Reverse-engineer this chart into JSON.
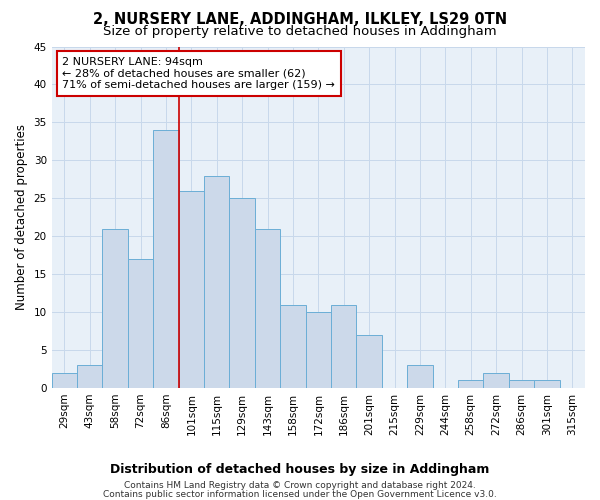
{
  "title": "2, NURSERY LANE, ADDINGHAM, ILKLEY, LS29 0TN",
  "subtitle": "Size of property relative to detached houses in Addingham",
  "xlabel": "Distribution of detached houses by size in Addingham",
  "ylabel": "Number of detached properties",
  "bar_labels": [
    "29sqm",
    "43sqm",
    "58sqm",
    "72sqm",
    "86sqm",
    "101sqm",
    "115sqm",
    "129sqm",
    "143sqm",
    "158sqm",
    "172sqm",
    "186sqm",
    "201sqm",
    "215sqm",
    "229sqm",
    "244sqm",
    "258sqm",
    "272sqm",
    "286sqm",
    "301sqm",
    "315sqm"
  ],
  "bar_values": [
    2,
    3,
    21,
    17,
    34,
    26,
    28,
    25,
    21,
    11,
    10,
    11,
    7,
    0,
    3,
    0,
    1,
    2,
    1,
    1,
    0
  ],
  "bar_color": "#ccd9ea",
  "bar_edge_color": "#6baed6",
  "grid_color": "#c8d8eb",
  "background_color": "#ffffff",
  "plot_bg_color": "#e8f0f8",
  "vline_x_index": 5,
  "vline_color": "#cc0000",
  "annotation_text": "2 NURSERY LANE: 94sqm\n← 28% of detached houses are smaller (62)\n71% of semi-detached houses are larger (159) →",
  "annotation_box_color": "#ffffff",
  "annotation_box_edge_color": "#cc0000",
  "footer_line1": "Contains HM Land Registry data © Crown copyright and database right 2024.",
  "footer_line2": "Contains public sector information licensed under the Open Government Licence v3.0.",
  "ylim": [
    0,
    45
  ],
  "yticks": [
    0,
    5,
    10,
    15,
    20,
    25,
    30,
    35,
    40,
    45
  ],
  "title_fontsize": 10.5,
  "subtitle_fontsize": 9.5,
  "ylabel_fontsize": 8.5,
  "xlabel_fontsize": 9,
  "tick_fontsize": 7.5,
  "annotation_fontsize": 8,
  "footer_fontsize": 6.5
}
